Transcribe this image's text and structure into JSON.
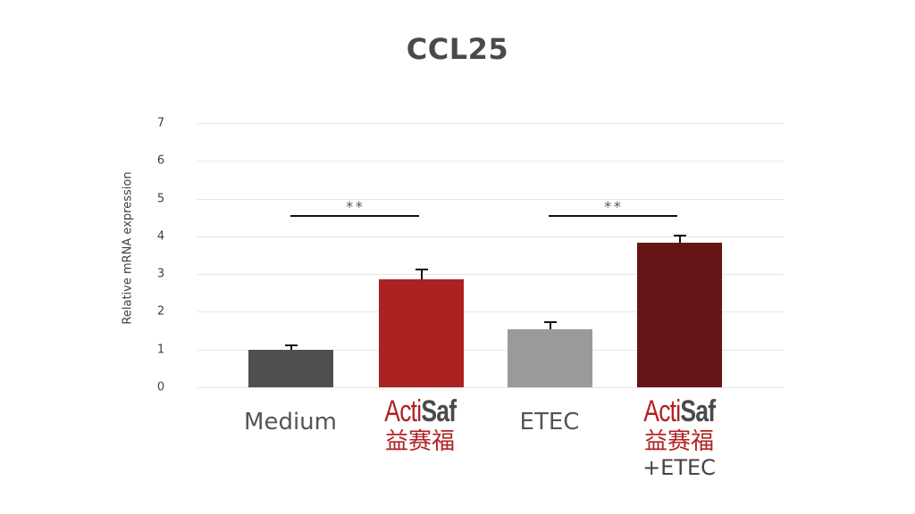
{
  "chart_data": {
    "type": "bar",
    "title": "CCL25",
    "xlabel": "",
    "ylabel": "Relative mRNA expression",
    "ylim": [
      0,
      7
    ],
    "yticks": [
      0,
      1,
      2,
      3,
      4,
      5,
      6,
      7
    ],
    "grid": true,
    "legend": null,
    "categories": [
      "Medium",
      "ActiSaf 益赛福",
      "ETEC",
      "ActiSaf 益赛福 +ETEC"
    ],
    "values": [
      1.0,
      2.87,
      1.54,
      3.84
    ],
    "error_bars_upper": [
      0.12,
      0.25,
      0.18,
      0.18
    ],
    "colors": [
      "#4f4f4e",
      "#ac2121",
      "#9a9a9a",
      "#671417"
    ],
    "annotations": [
      {
        "type": "significance",
        "text": "**",
        "between": [
          "Medium",
          "ActiSaf 益赛福"
        ]
      },
      {
        "type": "significance",
        "text": "**",
        "between": [
          "ETEC",
          "ActiSaf 益赛福 +ETEC"
        ]
      }
    ]
  },
  "labels": {
    "title": "CCL25",
    "ylabel": "Relative mRNA expression",
    "yticks": [
      "0",
      "1",
      "2",
      "3",
      "4",
      "5",
      "6",
      "7"
    ],
    "x": {
      "medium": "Medium",
      "etec": "ETEC",
      "brand_acti": "Acti",
      "brand_saf": "Saf",
      "brand_cn": "益赛福",
      "plus_etec": "+ETEC"
    },
    "sig": [
      "**",
      "**"
    ]
  }
}
